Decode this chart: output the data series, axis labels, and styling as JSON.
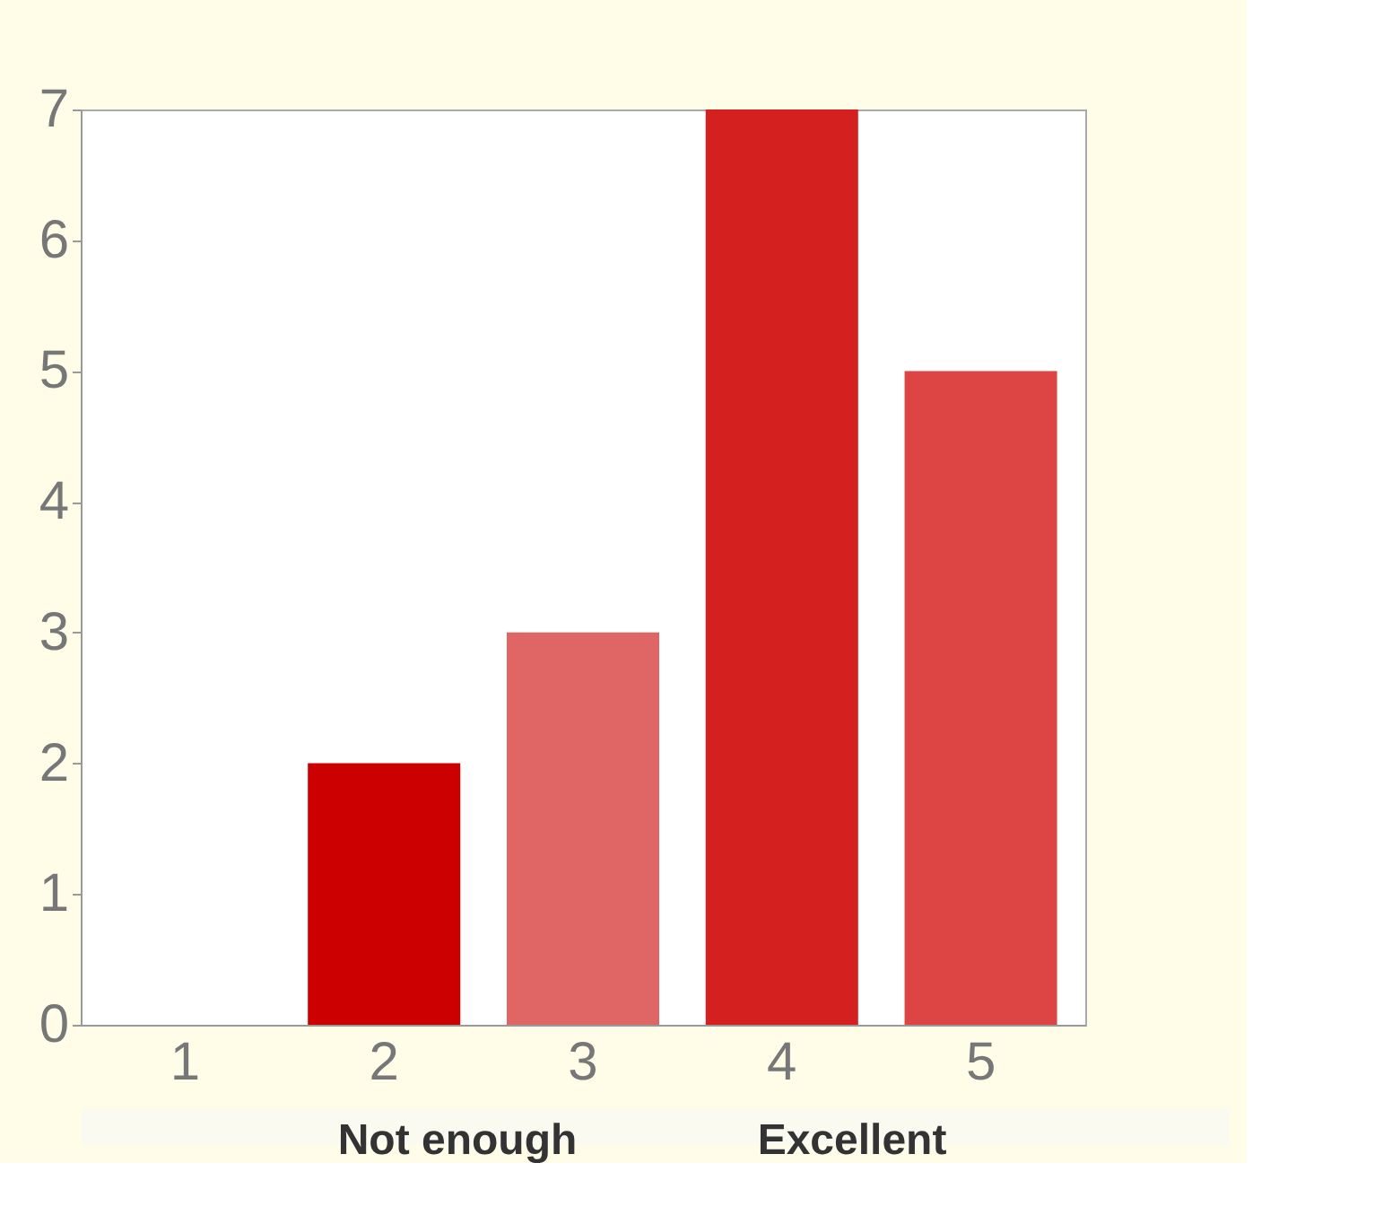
{
  "chart_data": {
    "type": "bar",
    "categories": [
      "1",
      "2",
      "3",
      "4",
      "5"
    ],
    "values": [
      0,
      2,
      3,
      7,
      5
    ],
    "colors": [
      "#cc0000",
      "#cc0000",
      "#e06666",
      "#d52020",
      "#dd4444"
    ],
    "ylim": [
      0,
      7
    ],
    "yticks": [
      0,
      1,
      2,
      3,
      4,
      5,
      6,
      7
    ],
    "grid": false,
    "annotations": [
      "Not enough",
      "Excellent"
    ]
  }
}
